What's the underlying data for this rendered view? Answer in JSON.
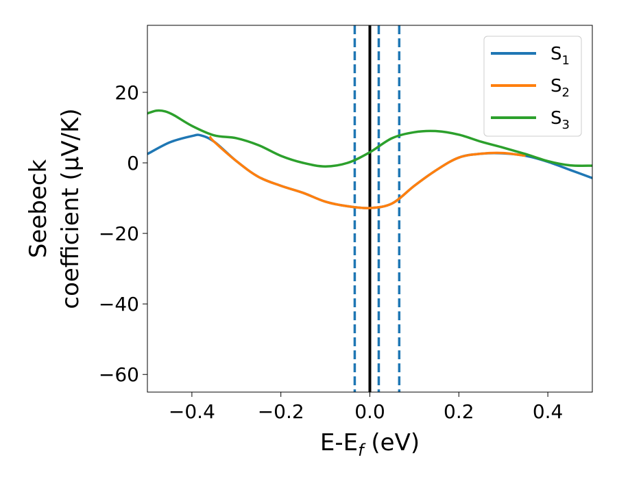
{
  "chart_data": {
    "type": "line",
    "xlabel": {
      "main": "E-E",
      "sub": "f",
      "tail": " (eV)"
    },
    "ylabel": {
      "line1": "Seebeck",
      "line2": "coefficient  (μV/K)"
    },
    "xlim": [
      -0.5,
      0.5
    ],
    "ylim": [
      -65,
      39
    ],
    "xticks": [
      -0.4,
      -0.2,
      0.0,
      0.2,
      0.4
    ],
    "xtick_labels": [
      "−0.4",
      "−0.2",
      "0.0",
      "0.2",
      "0.4"
    ],
    "yticks": [
      -60,
      -40,
      -20,
      0,
      20
    ],
    "ytick_labels": [
      "−60",
      "−40",
      "−20",
      "0",
      "20"
    ],
    "grid": false,
    "legend_position": "top-right",
    "vlines": [
      {
        "x": 0.0,
        "style": "solid",
        "color": "#000000"
      },
      {
        "x": -0.034,
        "style": "dashed",
        "color": "#1f77b4"
      },
      {
        "x": 0.02,
        "style": "dashed",
        "color": "#1f77b4"
      },
      {
        "x": 0.066,
        "style": "dashed",
        "color": "#1f77b4"
      }
    ],
    "series": [
      {
        "name": "S",
        "sub": "1",
        "color": "#1f77b4",
        "x": [
          -0.5,
          -0.45,
          -0.4,
          -0.38,
          -0.35,
          -0.3,
          -0.25,
          -0.2,
          -0.15,
          -0.1,
          -0.05,
          0.0,
          0.05,
          0.1,
          0.15,
          0.2,
          0.25,
          0.3,
          0.35,
          0.4,
          0.45,
          0.5
        ],
        "y": [
          2.5,
          5.8,
          7.6,
          7.8,
          6.0,
          0.5,
          -4.0,
          -6.5,
          -8.5,
          -11.0,
          -12.3,
          -12.8,
          -11.5,
          -6.5,
          -2.0,
          1.5,
          2.6,
          2.7,
          2.0,
          0.3,
          -2.0,
          -4.3
        ]
      },
      {
        "name": "S",
        "sub": "2",
        "color": "#ff7f0e",
        "x": [
          -0.36,
          -0.35,
          -0.3,
          -0.25,
          -0.2,
          -0.15,
          -0.1,
          -0.05,
          0.0,
          0.05,
          0.1,
          0.15,
          0.2,
          0.25,
          0.3,
          0.35
        ],
        "y": [
          7.5,
          6.0,
          0.5,
          -4.0,
          -6.5,
          -8.5,
          -11.0,
          -12.3,
          -12.8,
          -11.5,
          -6.5,
          -2.0,
          1.5,
          2.6,
          2.8,
          2.0
        ]
      },
      {
        "name": "S",
        "sub": "3",
        "color": "#2ca02c",
        "x": [
          -0.5,
          -0.48,
          -0.46,
          -0.44,
          -0.4,
          -0.35,
          -0.3,
          -0.25,
          -0.2,
          -0.15,
          -0.1,
          -0.05,
          0.0,
          0.05,
          0.1,
          0.15,
          0.2,
          0.25,
          0.3,
          0.35,
          0.4,
          0.45,
          0.5
        ],
        "y": [
          14.0,
          14.8,
          14.6,
          13.5,
          10.5,
          7.8,
          7.0,
          5.0,
          2.0,
          0.0,
          -1.0,
          0.0,
          3.0,
          7.0,
          8.7,
          9.0,
          8.0,
          6.0,
          4.3,
          2.5,
          0.5,
          -0.7,
          -0.8
        ]
      }
    ]
  }
}
